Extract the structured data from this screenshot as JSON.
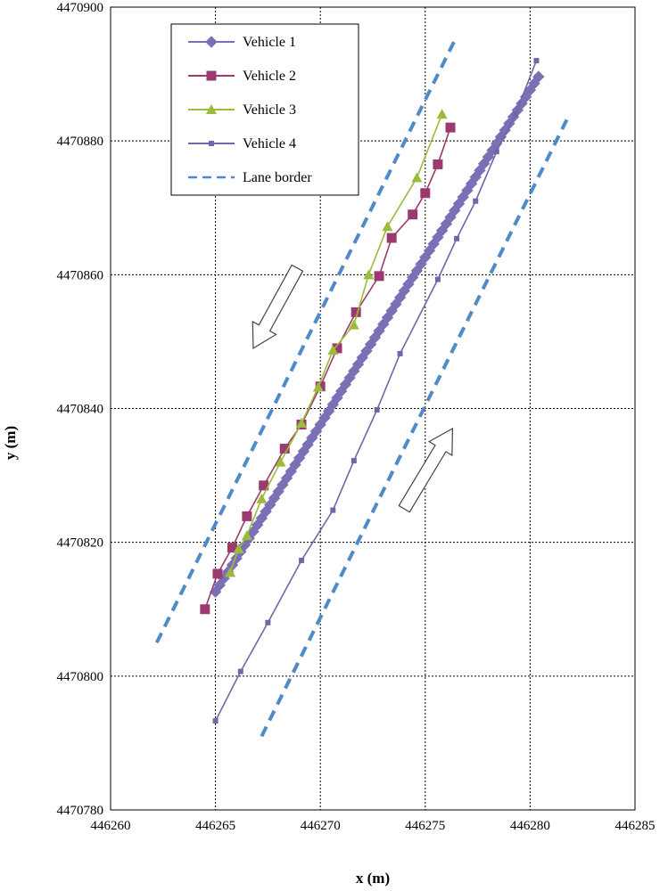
{
  "chart_data": {
    "type": "scatter",
    "xlabel": "x (m)",
    "ylabel": "y (m)",
    "xlim": [
      446260,
      446285
    ],
    "ylim": [
      4470780,
      4470900
    ],
    "xticks": [
      446260,
      446265,
      446270,
      446275,
      446280,
      446285
    ],
    "yticks": [
      4470780,
      4470800,
      4470820,
      4470840,
      4470860,
      4470880,
      4470900
    ],
    "grid": true,
    "legend_position": "top-left",
    "series": [
      {
        "name": "Vehicle 1",
        "color": "#7b6fb5",
        "marker": "diamond",
        "line": "solid",
        "points": [
          [
            446265.0,
            4470812.6
          ],
          [
            446265.2,
            4470813.6
          ],
          [
            446265.4,
            4470814.6
          ],
          [
            446265.6,
            4470815.6
          ],
          [
            446265.8,
            4470816.6
          ],
          [
            446266.0,
            4470817.6
          ],
          [
            446266.2,
            4470818.6
          ],
          [
            446266.4,
            4470819.6
          ],
          [
            446266.6,
            4470820.6
          ],
          [
            446266.8,
            4470821.6
          ],
          [
            446267.0,
            4470822.6
          ],
          [
            446267.2,
            4470823.6
          ],
          [
            446267.4,
            4470824.6
          ],
          [
            446267.6,
            4470825.6
          ],
          [
            446267.8,
            4470826.6
          ],
          [
            446268.0,
            4470827.6
          ],
          [
            446268.2,
            4470828.6
          ],
          [
            446268.4,
            4470829.6
          ],
          [
            446268.6,
            4470830.6
          ],
          [
            446268.8,
            4470831.6
          ],
          [
            446269.0,
            4470832.6
          ],
          [
            446269.2,
            4470833.6
          ],
          [
            446269.4,
            4470834.6
          ],
          [
            446269.6,
            4470835.6
          ],
          [
            446269.8,
            4470836.6
          ],
          [
            446270.0,
            4470837.6
          ],
          [
            446270.2,
            4470838.6
          ],
          [
            446270.4,
            4470839.6
          ],
          [
            446270.6,
            4470840.6
          ],
          [
            446270.8,
            4470841.6
          ],
          [
            446271.0,
            4470842.6
          ],
          [
            446271.2,
            4470843.6
          ],
          [
            446271.4,
            4470844.6
          ],
          [
            446271.6,
            4470845.6
          ],
          [
            446271.8,
            4470846.6
          ],
          [
            446272.0,
            4470847.6
          ],
          [
            446272.2,
            4470848.6
          ],
          [
            446272.4,
            4470849.6
          ],
          [
            446272.6,
            4470850.6
          ],
          [
            446272.8,
            4470851.6
          ],
          [
            446273.0,
            4470852.6
          ],
          [
            446273.2,
            4470853.6
          ],
          [
            446273.4,
            4470854.6
          ],
          [
            446273.6,
            4470855.6
          ],
          [
            446273.8,
            4470856.6
          ],
          [
            446274.0,
            4470857.6
          ],
          [
            446274.2,
            4470858.6
          ],
          [
            446274.4,
            4470859.6
          ],
          [
            446274.6,
            4470860.6
          ],
          [
            446274.8,
            4470861.6
          ],
          [
            446275.0,
            4470862.6
          ],
          [
            446275.2,
            4470863.6
          ],
          [
            446275.4,
            4470864.6
          ],
          [
            446275.6,
            4470865.6
          ],
          [
            446275.8,
            4470866.6
          ],
          [
            446276.0,
            4470867.6
          ],
          [
            446276.2,
            4470868.6
          ],
          [
            446276.4,
            4470869.6
          ],
          [
            446276.6,
            4470870.6
          ],
          [
            446276.8,
            4470871.6
          ],
          [
            446277.0,
            4470872.6
          ],
          [
            446277.2,
            4470873.6
          ],
          [
            446277.4,
            4470874.6
          ],
          [
            446277.6,
            4470875.6
          ],
          [
            446277.8,
            4470876.6
          ],
          [
            446278.0,
            4470877.6
          ],
          [
            446278.2,
            4470878.6
          ],
          [
            446278.4,
            4470879.6
          ],
          [
            446278.6,
            4470880.6
          ],
          [
            446278.8,
            4470881.6
          ],
          [
            446279.0,
            4470882.6
          ],
          [
            446279.2,
            4470883.6
          ],
          [
            446279.4,
            4470884.6
          ],
          [
            446279.6,
            4470885.6
          ],
          [
            446279.8,
            4470886.6
          ],
          [
            446280.0,
            4470887.6
          ],
          [
            446280.2,
            4470888.6
          ],
          [
            446280.4,
            4470889.6
          ]
        ]
      },
      {
        "name": "Vehicle 2",
        "color": "#9b3a6e",
        "marker": "square",
        "line": "solid",
        "points": [
          [
            446264.5,
            4470810.0
          ],
          [
            446265.1,
            4470815.3
          ],
          [
            446265.8,
            4470819.2
          ],
          [
            446266.5,
            4470823.9
          ],
          [
            446267.3,
            4470828.5
          ],
          [
            446268.3,
            4470834.0
          ],
          [
            446269.1,
            4470837.6
          ],
          [
            446270.0,
            4470843.3
          ],
          [
            446270.8,
            4470849.0
          ],
          [
            446271.7,
            4470854.4
          ],
          [
            446272.8,
            4470859.8
          ],
          [
            446273.4,
            4470865.5
          ],
          [
            446274.4,
            4470869.0
          ],
          [
            446275.0,
            4470872.2
          ],
          [
            446275.6,
            4470876.5
          ],
          [
            446276.2,
            4470882.0
          ]
        ]
      },
      {
        "name": "Vehicle 3",
        "color": "#9bbb3a",
        "marker": "triangle",
        "line": "solid",
        "points": [
          [
            446265.7,
            4470815.5
          ],
          [
            446266.1,
            4470819.0
          ],
          [
            446266.5,
            4470821.0
          ],
          [
            446267.2,
            4470826.5
          ],
          [
            446268.1,
            4470832.0
          ],
          [
            446269.1,
            4470837.8
          ],
          [
            446269.9,
            4470843.2
          ],
          [
            446270.6,
            4470848.7
          ],
          [
            446271.6,
            4470852.5
          ],
          [
            446272.3,
            4470860.0
          ],
          [
            446273.2,
            4470867.2
          ],
          [
            446274.6,
            4470874.5
          ],
          [
            446275.8,
            4470884.0
          ]
        ]
      },
      {
        "name": "Vehicle 4",
        "color": "#6a6aa6",
        "marker": "small-square",
        "line": "solid",
        "points": [
          [
            446265.0,
            4470793.3
          ],
          [
            446266.2,
            4470800.7
          ],
          [
            446267.5,
            4470808.0
          ],
          [
            446269.1,
            4470817.3
          ],
          [
            446270.6,
            4470824.8
          ],
          [
            446271.6,
            4470832.2
          ],
          [
            446272.7,
            4470839.8
          ],
          [
            446273.8,
            4470848.2
          ],
          [
            446275.6,
            4470859.3
          ],
          [
            446276.5,
            4470865.4
          ],
          [
            446277.4,
            4470871.0
          ],
          [
            446278.4,
            4470878.4
          ],
          [
            446279.3,
            4470884.0
          ],
          [
            446280.3,
            4470892.0
          ]
        ]
      },
      {
        "name": "Lane border",
        "color": "#4f8ac9",
        "marker": "none",
        "line": "dashed",
        "segments": [
          [
            [
              446262.2,
              4470805.0
            ],
            [
              446276.4,
              4470895.0
            ]
          ],
          [
            [
              446267.2,
              4470791.0
            ],
            [
              446281.8,
              4470883.5
            ]
          ]
        ]
      }
    ],
    "annotations": [
      {
        "type": "arrow",
        "direction": "down-left",
        "from": [
          446268.9,
          4470861.0
        ],
        "to": [
          446266.8,
          4470849.0
        ]
      },
      {
        "type": "arrow",
        "direction": "up-right",
        "from": [
          446274.0,
          4470825.0
        ],
        "to": [
          446276.3,
          4470837.0
        ]
      }
    ]
  }
}
